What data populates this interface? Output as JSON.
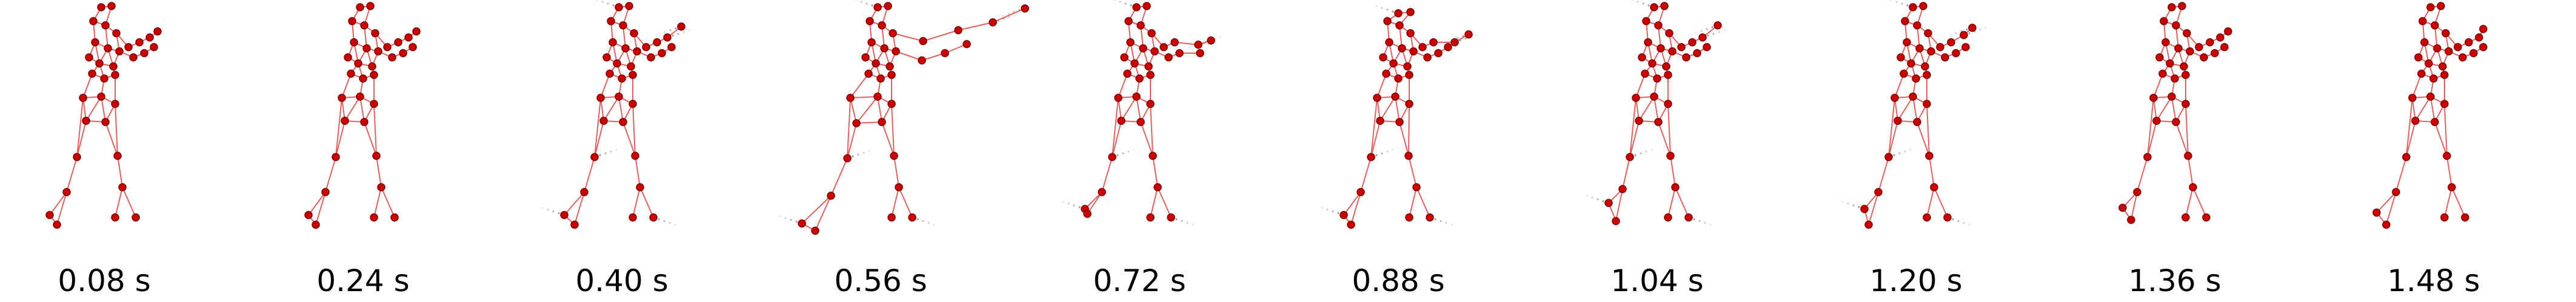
{
  "figure": {
    "type": "pose-sequence",
    "colors": {
      "joint_fill": "#cc0000",
      "joint_stroke": "#7a0000",
      "bone": "#e06060",
      "motion_trail": "#333333",
      "label": "#000000",
      "background": "#ffffff"
    },
    "frames": [
      {
        "label": "0.08 s",
        "pose": "arms-raised-forward"
      },
      {
        "label": "0.24 s",
        "pose": "arms-raised-forward"
      },
      {
        "label": "0.40 s",
        "pose": "arms-raised-forward",
        "motion_trail": true
      },
      {
        "label": "0.56 s",
        "pose": "arm-extended-lunge",
        "motion_trail": true
      },
      {
        "label": "0.72 s",
        "pose": "arms-raised-forward",
        "motion_trail": true
      },
      {
        "label": "0.88 s",
        "pose": "arms-raised-forward",
        "motion_trail": true
      },
      {
        "label": "1.04 s",
        "pose": "arms-raised-forward",
        "motion_trail": true
      },
      {
        "label": "1.20 s",
        "pose": "arms-raised-forward",
        "motion_trail": true
      },
      {
        "label": "1.36 s",
        "pose": "arms-raised-forward"
      },
      {
        "label": "1.48 s",
        "pose": "arms-raised-forward"
      }
    ]
  }
}
